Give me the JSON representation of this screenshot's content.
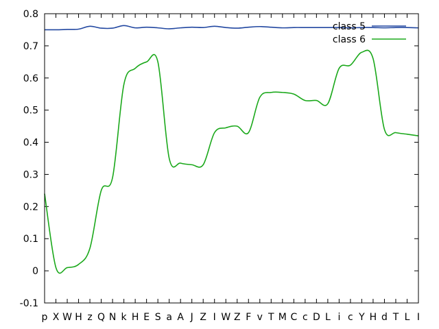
{
  "chart_data": {
    "type": "line",
    "categories": [
      "p",
      "X",
      "W",
      "H",
      "z",
      "Q",
      "N",
      "k",
      "H",
      "E",
      "S",
      "a",
      "A",
      "J",
      "Z",
      "I",
      "W",
      "Z",
      "F",
      "v",
      "T",
      "M",
      "C",
      "c",
      "D",
      "L",
      "i",
      "c",
      "Y",
      "H",
      "d",
      "T",
      "L",
      "I"
    ],
    "ylim": [
      -0.1,
      0.8
    ],
    "yticks": [
      -0.1,
      0,
      0.1,
      0.2,
      0.3,
      0.4,
      0.5,
      0.6,
      0.7,
      0.8
    ],
    "ytick_labels": [
      "-0.1",
      "0",
      "0.1",
      "0.2",
      "0.3",
      "0.4",
      "0.5",
      "0.6",
      "0.7",
      "0.8"
    ],
    "grid": false,
    "legend_position": "top-right",
    "series": [
      {
        "name": "class 5",
        "color": "#2046a0",
        "values": [
          0.75,
          0.75,
          0.751,
          0.752,
          0.761,
          0.755,
          0.755,
          0.763,
          0.756,
          0.758,
          0.756,
          0.753,
          0.756,
          0.758,
          0.757,
          0.761,
          0.757,
          0.755,
          0.758,
          0.76,
          0.758,
          0.756,
          0.757,
          0.757,
          0.757,
          0.757,
          0.757,
          0.756,
          0.757,
          0.757,
          0.756,
          0.757,
          0.757,
          0.756
        ]
      },
      {
        "name": "class 6",
        "color": "#1aa81a",
        "values": [
          0.24,
          0.01,
          0.01,
          0.02,
          0.07,
          0.25,
          0.29,
          0.58,
          0.63,
          0.65,
          0.65,
          0.35,
          0.335,
          0.33,
          0.33,
          0.43,
          0.445,
          0.45,
          0.43,
          0.54,
          0.555,
          0.555,
          0.55,
          0.53,
          0.53,
          0.52,
          0.63,
          0.64,
          0.68,
          0.66,
          0.44,
          0.43,
          0.425,
          0.42
        ]
      }
    ]
  }
}
